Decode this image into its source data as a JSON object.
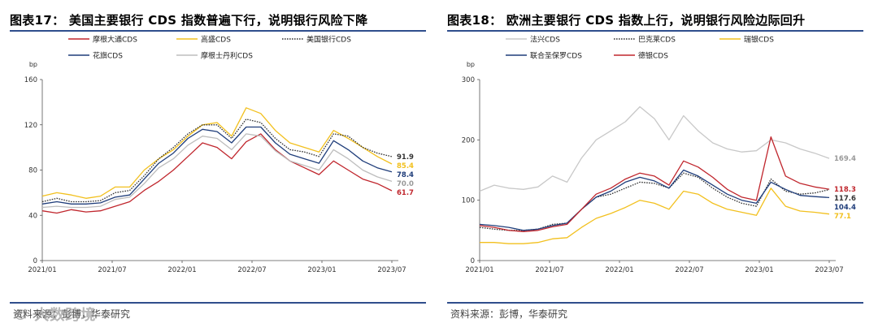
{
  "charts": [
    {
      "title": "图表17： 美国主要银行 CDS 指数普遍下行，说明银行风险下降",
      "source": "资料来源：彭博，华泰研究",
      "ylabel": "bp",
      "x_ticks": [
        "2021/01",
        "2021/07",
        "2022/01",
        "2022/07",
        "2023/01",
        "2023/07"
      ],
      "y_ticks": [
        "0",
        "40",
        "80",
        "120",
        "160"
      ]
    },
    {
      "title": "图表18： 欧洲主要银行 CDS 指数上行，说明银行风险边际回升",
      "source": "资料来源：彭博，华泰研究",
      "ylabel": "bp",
      "x_ticks": [
        "2021/01",
        "2021/07",
        "2022/01",
        "2022/07",
        "2023/01",
        "2023/07"
      ],
      "y_ticks": [
        "0",
        "100",
        "200",
        "300"
      ]
    }
  ],
  "watermark": "© 大数跨境",
  "chart_data": [
    {
      "type": "line",
      "title": "",
      "ylabel": "bp",
      "ylim": [
        0,
        160
      ],
      "x_range": [
        "2021-01",
        "2023-07"
      ],
      "x_ticks": [
        "2021/01",
        "2021/07",
        "2022/01",
        "2022/07",
        "2023/01",
        "2023/07"
      ],
      "legend_placement": "top",
      "grid": false,
      "x": [
        "2021-01",
        "2021-03",
        "2021-05",
        "2021-07",
        "2021-09",
        "2021-11",
        "2022-01",
        "2022-02",
        "2022-03",
        "2022-04",
        "2022-05",
        "2022-06",
        "2022-07",
        "2022-08",
        "2022-09",
        "2022-10",
        "2022-11",
        "2022-12",
        "2023-01",
        "2023-02",
        "2023-03",
        "2023-04",
        "2023-05",
        "2023-06",
        "2023-07"
      ],
      "series": [
        {
          "name": "摩根大通CDS",
          "color": "#c0262d",
          "dash": "solid",
          "end_label": "61.7",
          "values": [
            44,
            42,
            45,
            43,
            44,
            48,
            52,
            62,
            70,
            80,
            92,
            104,
            100,
            90,
            105,
            112,
            98,
            88,
            82,
            76,
            88,
            80,
            72,
            68,
            61.7
          ]
        },
        {
          "name": "高盛CDS",
          "color": "#f2c01e",
          "dash": "solid",
          "end_label": "85.4",
          "values": [
            57,
            60,
            58,
            55,
            57,
            65,
            65,
            80,
            90,
            98,
            110,
            120,
            122,
            110,
            135,
            130,
            115,
            104,
            100,
            96,
            115,
            108,
            100,
            92,
            85.4
          ]
        },
        {
          "name": "美国银行CDS",
          "color": "#333333",
          "dash": "dot",
          "end_label": "91.9",
          "values": [
            52,
            55,
            52,
            52,
            53,
            60,
            62,
            75,
            90,
            100,
            112,
            120,
            120,
            108,
            125,
            122,
            108,
            98,
            96,
            92,
            112,
            110,
            100,
            95,
            91.9
          ]
        },
        {
          "name": "花旗CDS",
          "color": "#1f3d7a",
          "dash": "solid",
          "end_label": "78.4",
          "values": [
            50,
            52,
            50,
            50,
            51,
            56,
            58,
            72,
            86,
            95,
            108,
            116,
            114,
            104,
            118,
            118,
            104,
            94,
            90,
            86,
            106,
            98,
            88,
            82,
            78.4
          ]
        },
        {
          "name": "摩根士丹利CDS",
          "color": "#bdbdbd",
          "dash": "solid",
          "end_label": "70.0",
          "values": [
            47,
            48,
            47,
            47,
            48,
            54,
            56,
            68,
            82,
            90,
            102,
            110,
            108,
            98,
            112,
            110,
            97,
            88,
            84,
            80,
            98,
            90,
            80,
            74,
            70.0
          ]
        }
      ]
    },
    {
      "type": "line",
      "title": "",
      "ylabel": "bp",
      "ylim": [
        0,
        300
      ],
      "x_range": [
        "2021-01",
        "2023-07"
      ],
      "x_ticks": [
        "2021/01",
        "2021/07",
        "2022/01",
        "2022/07",
        "2023/01",
        "2023/07"
      ],
      "legend_placement": "top",
      "grid": false,
      "x": [
        "2021-01",
        "2021-03",
        "2021-05",
        "2021-07",
        "2021-09",
        "2021-11",
        "2022-01",
        "2022-02",
        "2022-03",
        "2022-04",
        "2022-05",
        "2022-06",
        "2022-07",
        "2022-08",
        "2022-09",
        "2022-10",
        "2022-11",
        "2022-12",
        "2023-01",
        "2023-02",
        "2023-03",
        "2023-04",
        "2023-05",
        "2023-06",
        "2023-07"
      ],
      "series": [
        {
          "name": "法兴CDS",
          "color": "#c8c8c8",
          "dash": "solid",
          "end_label": "169.4",
          "values": [
            115,
            125,
            120,
            118,
            122,
            140,
            130,
            170,
            200,
            215,
            230,
            255,
            235,
            200,
            240,
            215,
            195,
            185,
            180,
            182,
            200,
            195,
            185,
            178,
            169.4
          ]
        },
        {
          "name": "巴克莱CDS",
          "color": "#333333",
          "dash": "dot",
          "end_label": "117.6",
          "values": [
            55,
            52,
            50,
            50,
            52,
            60,
            62,
            85,
            105,
            110,
            120,
            130,
            128,
            120,
            145,
            138,
            120,
            105,
            95,
            90,
            135,
            115,
            110,
            112,
            117.6
          ]
        },
        {
          "name": "瑞银CDS",
          "color": "#f2c01e",
          "dash": "solid",
          "end_label": "77.1",
          "values": [
            30,
            30,
            28,
            28,
            30,
            36,
            38,
            55,
            70,
            78,
            88,
            100,
            95,
            85,
            115,
            110,
            95,
            85,
            80,
            75,
            120,
            90,
            82,
            80,
            77.1
          ]
        },
        {
          "name": "联合圣保罗CDS",
          "color": "#1f3d7a",
          "dash": "solid",
          "end_label": "104.4",
          "values": [
            60,
            58,
            55,
            50,
            52,
            58,
            62,
            85,
            105,
            115,
            130,
            138,
            132,
            120,
            150,
            140,
            125,
            110,
            100,
            95,
            130,
            118,
            108,
            106,
            104.4
          ]
        },
        {
          "name": "德银CDS",
          "color": "#c0262d",
          "dash": "solid",
          "end_label": "118.3",
          "values": [
            58,
            55,
            50,
            48,
            50,
            56,
            60,
            85,
            110,
            120,
            135,
            145,
            140,
            125,
            165,
            155,
            138,
            118,
            105,
            100,
            205,
            140,
            128,
            122,
            118.3
          ]
        }
      ]
    }
  ]
}
